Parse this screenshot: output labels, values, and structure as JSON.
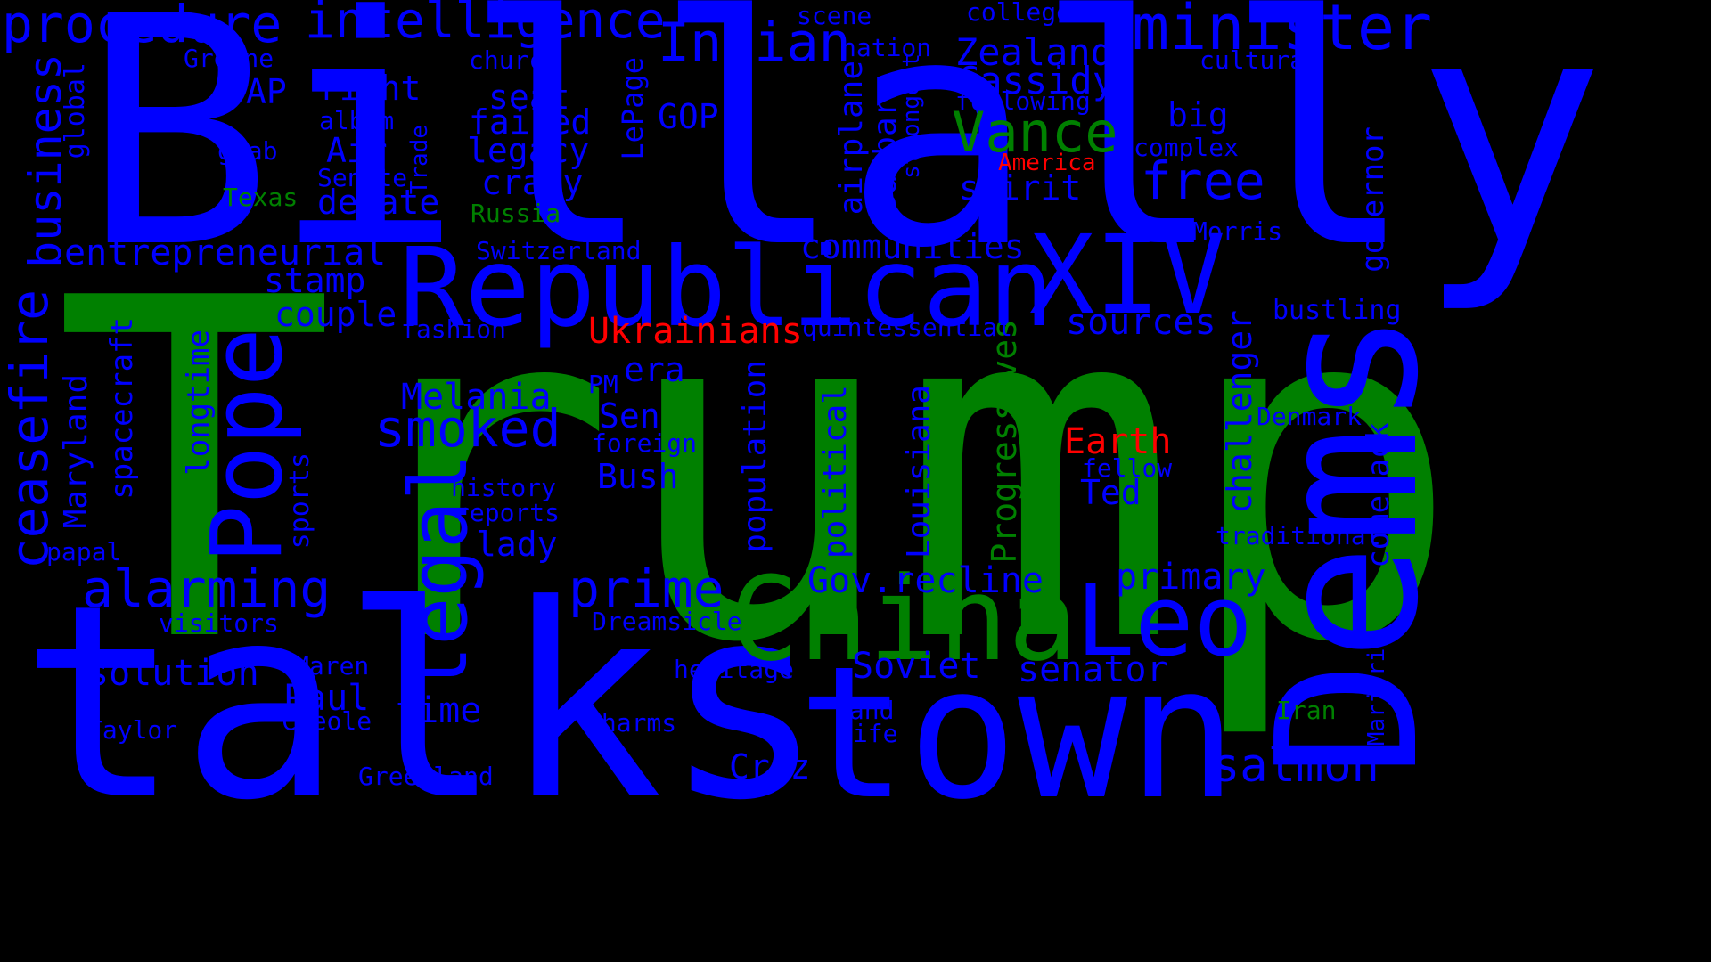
{
  "colors": {
    "background": "#000000",
    "primary": "#0000ff",
    "secondary": "#008000",
    "highlight": "#ff0000"
  },
  "words": [
    {
      "text": "Trump",
      "color": "green"
    },
    {
      "text": "Billally",
      "color": "blue"
    },
    {
      "text": "talks",
      "color": "blue"
    },
    {
      "text": "town",
      "color": "blue"
    },
    {
      "text": "Dems",
      "color": "blue"
    },
    {
      "text": "Republican",
      "color": "blue"
    },
    {
      "text": "China",
      "color": "green"
    },
    {
      "text": "Pope",
      "color": "blue"
    },
    {
      "text": "XIV",
      "color": "blue"
    },
    {
      "text": "Leo",
      "color": "blue"
    },
    {
      "text": "legal",
      "color": "blue"
    },
    {
      "text": "minister",
      "color": "blue"
    },
    {
      "text": "Indian",
      "color": "blue"
    },
    {
      "text": "procedure",
      "color": "blue"
    },
    {
      "text": "intelligence",
      "color": "blue"
    },
    {
      "text": "Vance",
      "color": "green"
    },
    {
      "text": "ceasefire",
      "color": "blue"
    },
    {
      "text": "business",
      "color": "blue"
    },
    {
      "text": "alarming",
      "color": "blue"
    },
    {
      "text": "prime",
      "color": "blue"
    },
    {
      "text": "smoked",
      "color": "blue"
    },
    {
      "text": "free",
      "color": "blue"
    },
    {
      "text": "salmon",
      "color": "blue"
    },
    {
      "text": "Zealand",
      "color": "blue"
    },
    {
      "text": "Cassidy",
      "color": "blue"
    },
    {
      "text": "communities",
      "color": "blue"
    },
    {
      "text": "Earth",
      "color": "red"
    },
    {
      "text": "Ukrainians",
      "color": "red"
    },
    {
      "text": "America",
      "color": "red"
    },
    {
      "text": "entrepreneurial",
      "color": "blue"
    },
    {
      "text": "Gov.recline",
      "color": "blue"
    },
    {
      "text": "Progressives",
      "color": "green"
    },
    {
      "text": "Melania",
      "color": "blue"
    },
    {
      "text": "solution",
      "color": "blue"
    },
    {
      "text": "Paul",
      "color": "blue"
    },
    {
      "text": "time",
      "color": "blue"
    },
    {
      "text": "Soviet",
      "color": "blue"
    },
    {
      "text": "senator",
      "color": "blue"
    },
    {
      "text": "primary",
      "color": "blue"
    },
    {
      "text": "sources",
      "color": "blue"
    },
    {
      "text": "challenger",
      "color": "blue"
    },
    {
      "text": "comeback",
      "color": "blue"
    },
    {
      "text": "governor",
      "color": "blue"
    },
    {
      "text": "Cruz",
      "color": "blue"
    },
    {
      "text": "Bush",
      "color": "blue"
    },
    {
      "text": "Ted",
      "color": "blue"
    },
    {
      "text": "Sen",
      "color": "blue"
    },
    {
      "text": "era",
      "color": "blue"
    },
    {
      "text": "lady",
      "color": "blue"
    },
    {
      "text": "couple",
      "color": "blue"
    },
    {
      "text": "stamp",
      "color": "blue"
    },
    {
      "text": "debate",
      "color": "blue"
    },
    {
      "text": "crazy",
      "color": "blue"
    },
    {
      "text": "legacy",
      "color": "blue"
    },
    {
      "text": "failed",
      "color": "blue"
    },
    {
      "text": "seat",
      "color": "blue"
    },
    {
      "text": "right",
      "color": "blue"
    },
    {
      "text": "AP",
      "color": "blue"
    },
    {
      "text": "Air",
      "color": "blue"
    },
    {
      "text": "GOP",
      "color": "blue"
    },
    {
      "text": "spirit",
      "color": "blue"
    },
    {
      "text": "big",
      "color": "blue"
    },
    {
      "text": "Barbara",
      "color": "blue"
    },
    {
      "text": "airplane",
      "color": "blue"
    },
    {
      "text": "LePage",
      "color": "blue"
    },
    {
      "text": "population",
      "color": "blue"
    },
    {
      "text": "political",
      "color": "blue"
    },
    {
      "text": "Louisiana",
      "color": "blue"
    },
    {
      "text": "Maryland",
      "color": "blue"
    },
    {
      "text": "spacecraft",
      "color": "blue"
    },
    {
      "text": "longtime",
      "color": "blue"
    },
    {
      "text": "sports",
      "color": "blue"
    },
    {
      "text": "global",
      "color": "blue"
    },
    {
      "text": "bustling",
      "color": "blue"
    },
    {
      "text": "Denmark",
      "color": "blue"
    },
    {
      "text": "Morris",
      "color": "blue"
    },
    {
      "text": "cultural",
      "color": "blue"
    },
    {
      "text": "complex",
      "color": "blue"
    },
    {
      "text": "following",
      "color": "blue"
    },
    {
      "text": "nation",
      "color": "blue"
    },
    {
      "text": "scene",
      "color": "blue"
    },
    {
      "text": "college",
      "color": "blue"
    },
    {
      "text": "church",
      "color": "blue"
    },
    {
      "text": "Greene",
      "color": "blue"
    },
    {
      "text": "album",
      "color": "blue"
    },
    {
      "text": "grab",
      "color": "blue"
    },
    {
      "text": "Senate",
      "color": "blue"
    },
    {
      "text": "Texas",
      "color": "green"
    },
    {
      "text": "Russia",
      "color": "green"
    },
    {
      "text": "Trade",
      "color": "blue"
    },
    {
      "text": "strongest",
      "color": "blue"
    },
    {
      "text": "Switzerland",
      "color": "blue"
    },
    {
      "text": "fashion",
      "color": "blue"
    },
    {
      "text": "quintessential",
      "color": "blue"
    },
    {
      "text": "PM",
      "color": "blue"
    },
    {
      "text": "foreign",
      "color": "blue"
    },
    {
      "text": "history",
      "color": "blue"
    },
    {
      "text": "reports",
      "color": "blue"
    },
    {
      "text": "papal",
      "color": "blue"
    },
    {
      "text": "visitors",
      "color": "blue"
    },
    {
      "text": "Dreamsicle",
      "color": "blue"
    },
    {
      "text": "heritage",
      "color": "blue"
    },
    {
      "text": "Maren",
      "color": "blue"
    },
    {
      "text": "Creole",
      "color": "blue"
    },
    {
      "text": "Taylor",
      "color": "blue"
    },
    {
      "text": "charms",
      "color": "blue"
    },
    {
      "text": "land",
      "color": "blue"
    },
    {
      "text": "life",
      "color": "blue"
    },
    {
      "text": "Greenland",
      "color": "blue"
    },
    {
      "text": "fellow",
      "color": "blue"
    },
    {
      "text": "traditional",
      "color": "blue"
    },
    {
      "text": "Iran",
      "color": "green"
    },
    {
      "text": "Marjorie",
      "color": "blue"
    }
  ]
}
